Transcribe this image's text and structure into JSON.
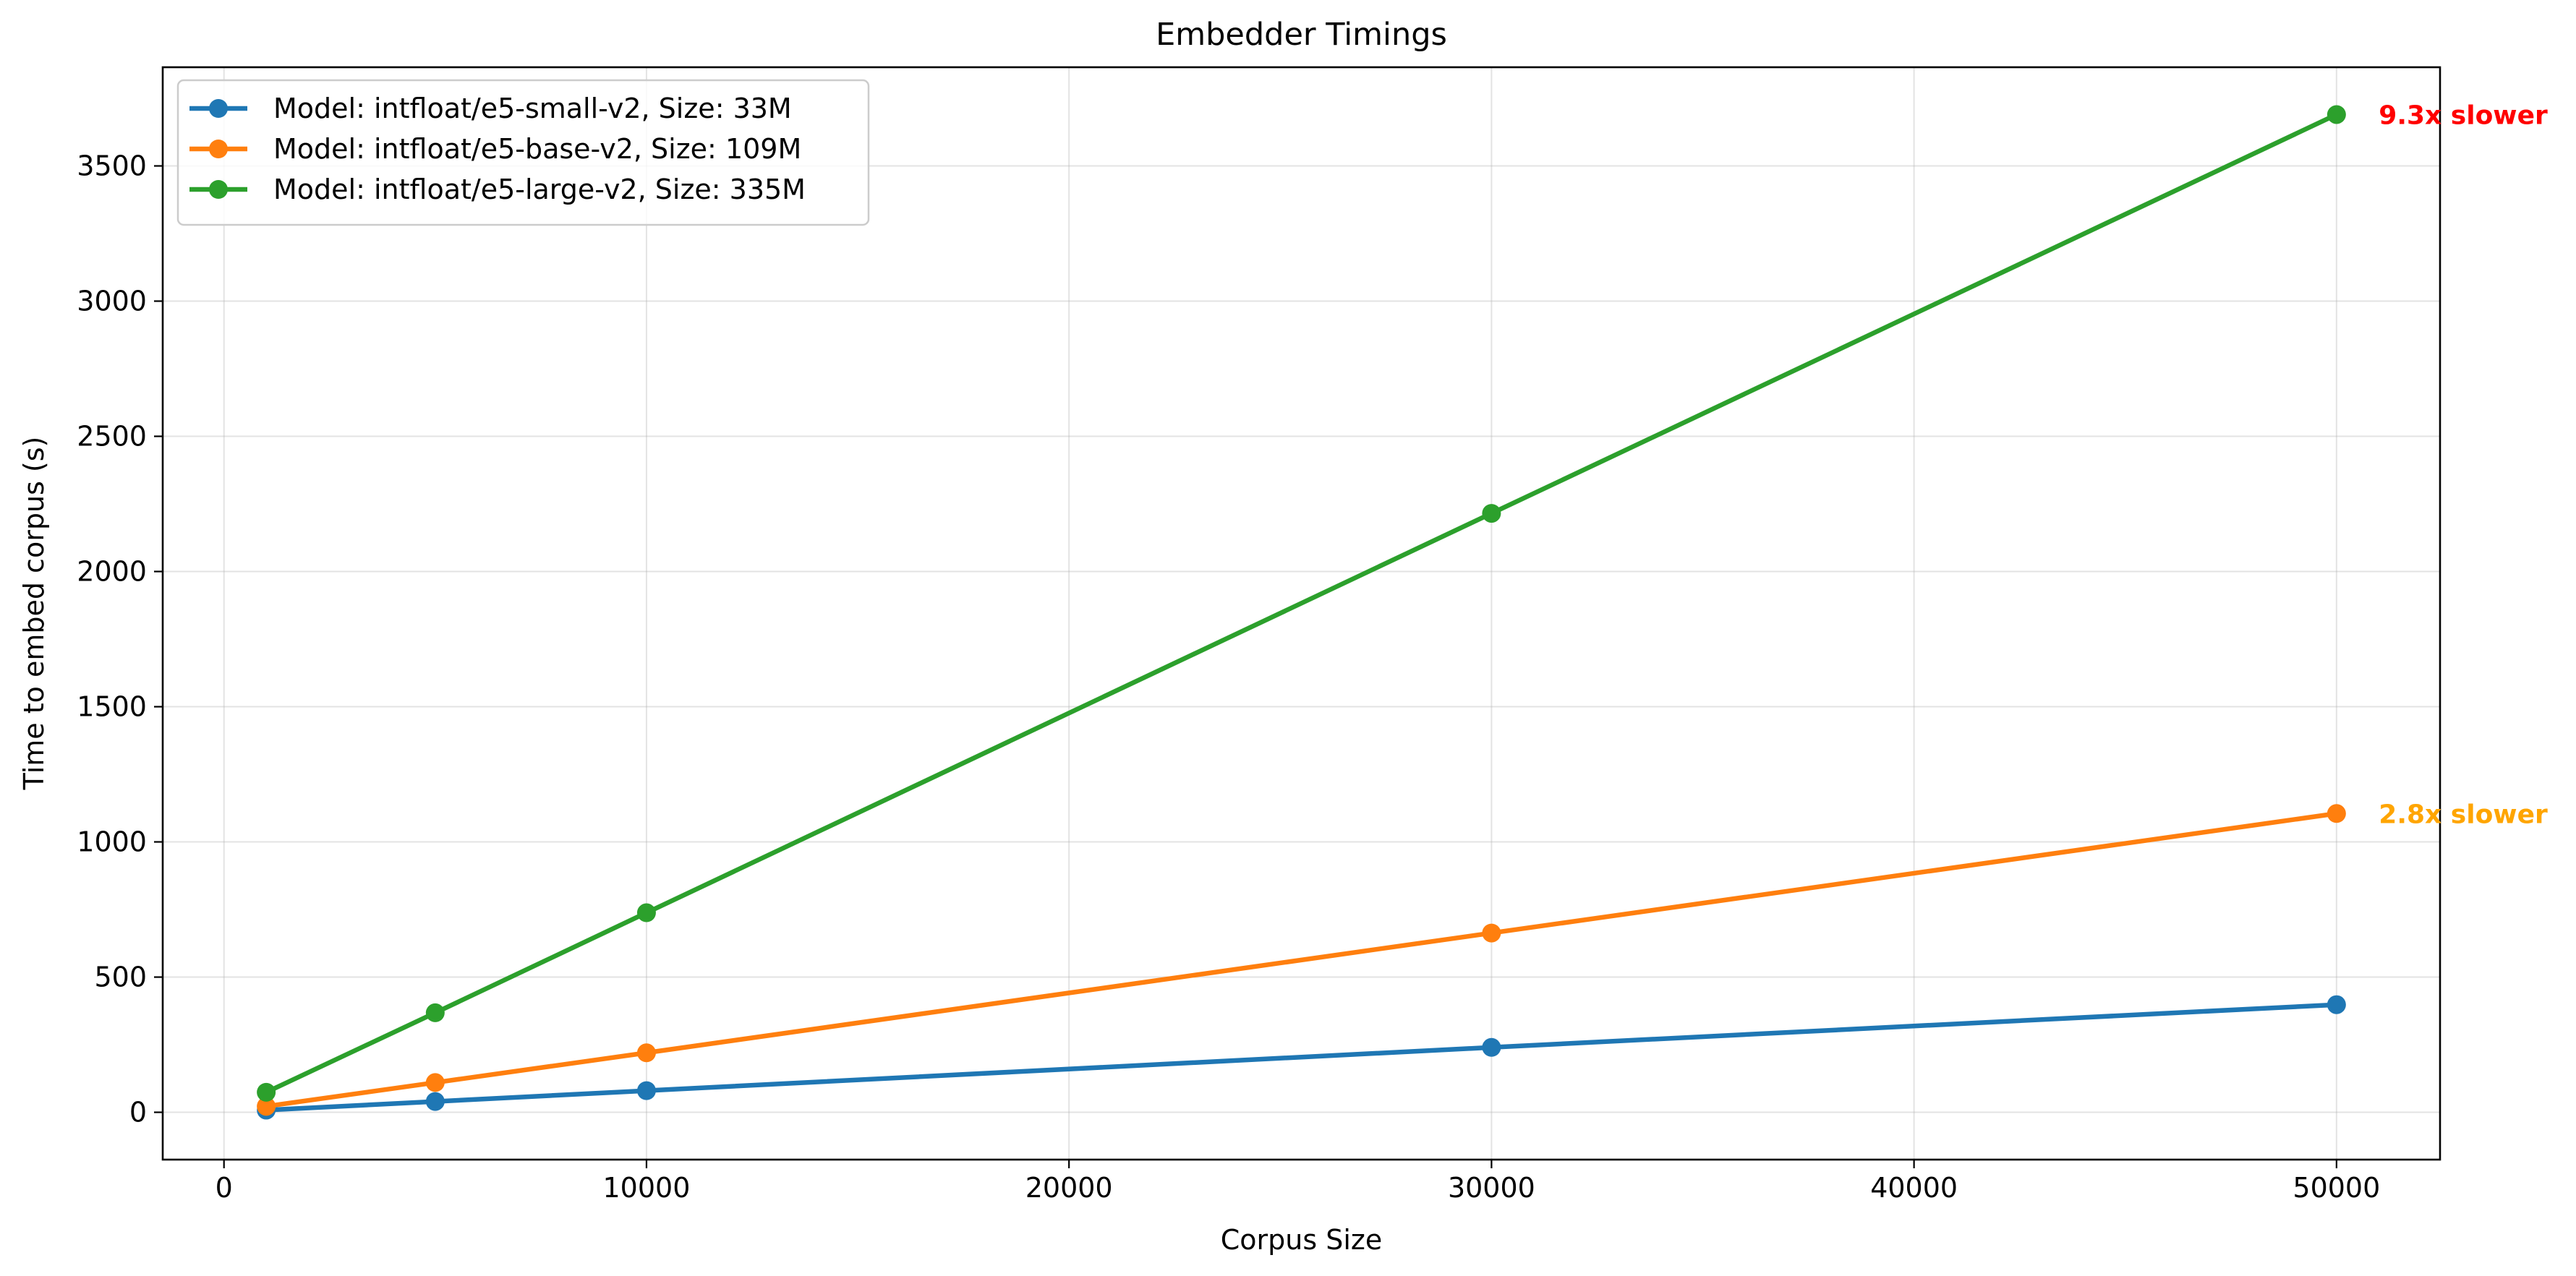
{
  "chart_data": {
    "type": "line",
    "title": "Embedder Timings",
    "xlabel": "Corpus Size",
    "ylabel": "Time to embed corpus (s)",
    "xlim": [
      -1450,
      52450
    ],
    "ylim": [
      -175,
      3865
    ],
    "xticks": [
      0,
      10000,
      20000,
      30000,
      40000,
      50000
    ],
    "yticks": [
      0,
      500,
      1000,
      1500,
      2000,
      2500,
      3000,
      3500
    ],
    "grid": true,
    "legend_position": "top-left",
    "x": [
      1000,
      5000,
      10000,
      30000,
      50000
    ],
    "series": [
      {
        "name": "Model: intfloat/e5-small-v2, Size: 33M",
        "color": "#1f77b4",
        "values": [
          8,
          40,
          80,
          240,
          398
        ]
      },
      {
        "name": "Model: intfloat/e5-base-v2, Size: 109M",
        "color": "#ff7f0e",
        "values": [
          22,
          110,
          220,
          663,
          1105
        ]
      },
      {
        "name": "Model: intfloat/e5-large-v2, Size: 335M",
        "color": "#2ca02c",
        "values": [
          74,
          368,
          738,
          2215,
          3690
        ]
      }
    ],
    "annotations": [
      {
        "text": "9.3x slower",
        "x": 51000,
        "y": 3690,
        "color": "#ff0000"
      },
      {
        "text": "2.8x slower",
        "x": 51000,
        "y": 1105,
        "color": "#ffa500"
      }
    ]
  }
}
